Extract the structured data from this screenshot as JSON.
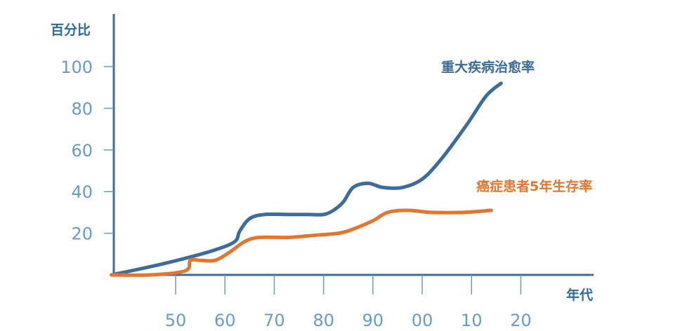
{
  "chart_data": {
    "type": "line",
    "ylabel": "百分比",
    "xlabel": "年代",
    "ylim": [
      0,
      100
    ],
    "yticks": [
      "100",
      "80",
      "60",
      "40",
      "20"
    ],
    "ytick_values": [
      100,
      80,
      60,
      40,
      20
    ],
    "xticks": [
      "50",
      "60",
      "70",
      "80",
      "90",
      "00",
      "10",
      "20"
    ],
    "xtick_years": [
      1950,
      1960,
      1970,
      1980,
      1990,
      2000,
      2010,
      2020
    ],
    "grid": false,
    "series": [
      {
        "name": "重大疾病治愈率",
        "color": "#3c6c97",
        "points": [
          [
            1937,
            0
          ],
          [
            1945,
            4
          ],
          [
            1952,
            8
          ],
          [
            1958,
            12
          ],
          [
            1962,
            16
          ],
          [
            1963,
            21
          ],
          [
            1965,
            27
          ],
          [
            1968,
            29
          ],
          [
            1973,
            29
          ],
          [
            1977,
            29
          ],
          [
            1980,
            29
          ],
          [
            1982,
            31
          ],
          [
            1984,
            35
          ],
          [
            1986,
            42
          ],
          [
            1989,
            44
          ],
          [
            1992,
            42
          ],
          [
            1996,
            42
          ],
          [
            2000,
            46
          ],
          [
            2004,
            56
          ],
          [
            2009,
            72
          ],
          [
            2013,
            86
          ],
          [
            2016,
            92
          ]
        ]
      },
      {
        "name": "癌症患者5年生存率",
        "color": "#e3762f",
        "points": [
          [
            1937,
            0
          ],
          [
            1945,
            0
          ],
          [
            1952,
            2
          ],
          [
            1953,
            7
          ],
          [
            1955,
            7
          ],
          [
            1958,
            7
          ],
          [
            1961,
            11
          ],
          [
            1964,
            16
          ],
          [
            1967,
            18
          ],
          [
            1973,
            18
          ],
          [
            1978,
            19
          ],
          [
            1983,
            20
          ],
          [
            1986,
            22
          ],
          [
            1990,
            26
          ],
          [
            1993,
            30
          ],
          [
            1997,
            31
          ],
          [
            2002,
            30
          ],
          [
            2008,
            30
          ],
          [
            2014,
            31
          ]
        ]
      }
    ]
  }
}
